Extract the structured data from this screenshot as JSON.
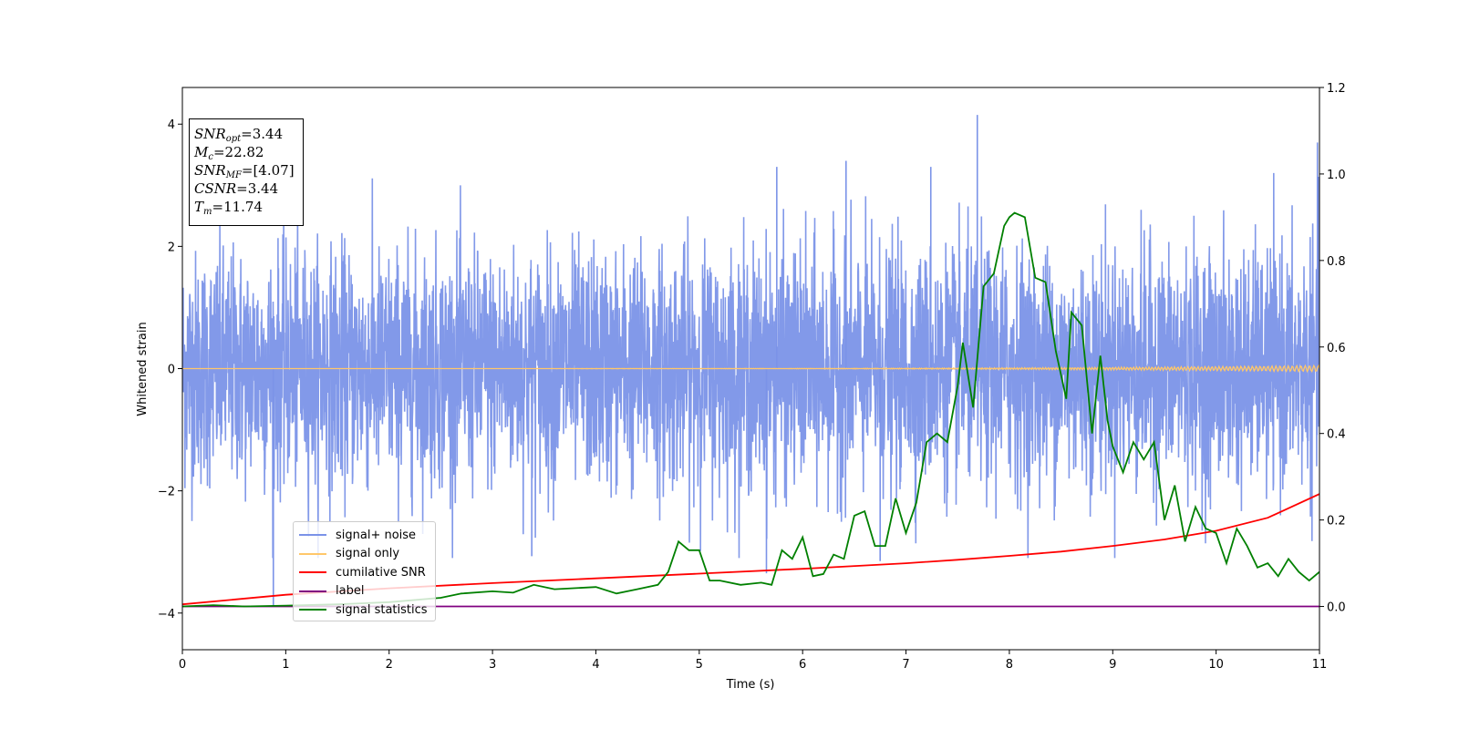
{
  "chart_data": {
    "type": "line",
    "title": "",
    "xlabel": "Time (s)",
    "ylabel": "Whitened strain",
    "xlim": [
      0,
      11
    ],
    "ylim": [
      -4.6,
      4.6
    ],
    "y2lim": [
      -0.1,
      1.2
    ],
    "xticks": [
      "0",
      "1",
      "2",
      "3",
      "4",
      "5",
      "6",
      "7",
      "8",
      "9",
      "10",
      "11"
    ],
    "yticks": [
      "−4",
      "−2",
      "0",
      "2",
      "4"
    ],
    "y2ticks": [
      "0.0",
      "0.2",
      "0.4",
      "0.6",
      "0.8",
      "1.0",
      "1.2"
    ],
    "annotation": {
      "snr_opt": "=3.44",
      "mc": "=22.82",
      "snr_mf": "=[4.07]",
      "csnr": "=3.44",
      "tm": "=11.74"
    },
    "legend": {
      "placement": "lower-left",
      "entries": [
        {
          "label": "signal+ noise",
          "color": "#7b93e8"
        },
        {
          "label": "signal only",
          "color": "#ffc76a"
        },
        {
          "label": "cumilative SNR",
          "color": "#ff0000"
        },
        {
          "label": "label",
          "color": "#800080"
        },
        {
          "label": "signal statistics",
          "color": "#008000"
        }
      ]
    },
    "series": [
      {
        "name": "signal+ noise",
        "axis": "left",
        "color": "#7b93e8",
        "envelope": {
          "upper_typical": 2.3,
          "lower_typical": -2.1,
          "max": 4.15,
          "min": -3.9
        },
        "peaks": [
          [
            7.69,
            4.15
          ],
          [
            10.98,
            3.7
          ],
          [
            5.75,
            3.3
          ],
          [
            7.24,
            3.3
          ],
          [
            6.42,
            3.4
          ],
          [
            0.88,
            -3.9
          ],
          [
            5.65,
            -3.35
          ],
          [
            3.38,
            -3.07
          ],
          [
            6.75,
            -3.15
          ]
        ]
      },
      {
        "name": "signal only",
        "axis": "left",
        "color": "#ffc76a",
        "description_values": {
          "amplitude_start": 0.0,
          "amplitude_end": 0.05
        }
      },
      {
        "name": "cumilative SNR",
        "axis": "right",
        "color": "#ff0000",
        "x": [
          0,
          1,
          2,
          3,
          4,
          5,
          6,
          7,
          7.5,
          8,
          8.5,
          9,
          9.5,
          10,
          10.5,
          11
        ],
        "y": [
          0.005,
          0.027,
          0.042,
          0.054,
          0.065,
          0.076,
          0.087,
          0.1,
          0.108,
          0.117,
          0.127,
          0.14,
          0.155,
          0.175,
          0.205,
          0.26
        ]
      },
      {
        "name": "label",
        "axis": "right",
        "color": "#800080",
        "x": [
          0,
          11
        ],
        "y": [
          0,
          0
        ]
      },
      {
        "name": "signal statistics",
        "axis": "right",
        "color": "#008000",
        "x": [
          0,
          0.3,
          0.6,
          1.0,
          1.5,
          2.0,
          2.5,
          2.7,
          3.0,
          3.2,
          3.4,
          3.6,
          4.0,
          4.2,
          4.4,
          4.6,
          4.7,
          4.8,
          4.9,
          5.0,
          5.1,
          5.2,
          5.4,
          5.6,
          5.7,
          5.8,
          5.9,
          6.0,
          6.1,
          6.2,
          6.3,
          6.4,
          6.5,
          6.6,
          6.7,
          6.8,
          6.9,
          7.0,
          7.1,
          7.2,
          7.3,
          7.4,
          7.5,
          7.55,
          7.65,
          7.75,
          7.85,
          7.95,
          8.0,
          8.05,
          8.15,
          8.25,
          8.35,
          8.45,
          8.55,
          8.6,
          8.7,
          8.8,
          8.88,
          8.95,
          9.0,
          9.1,
          9.2,
          9.3,
          9.4,
          9.5,
          9.6,
          9.7,
          9.8,
          9.9,
          10.0,
          10.1,
          10.2,
          10.3,
          10.4,
          10.5,
          10.6,
          10.7,
          10.8,
          10.9,
          11.0
        ],
        "y": [
          0.0,
          0.003,
          0.0,
          0.002,
          0.005,
          0.01,
          0.02,
          0.03,
          0.035,
          0.032,
          0.05,
          0.04,
          0.045,
          0.03,
          0.04,
          0.05,
          0.08,
          0.15,
          0.13,
          0.13,
          0.06,
          0.06,
          0.05,
          0.055,
          0.05,
          0.13,
          0.11,
          0.16,
          0.07,
          0.075,
          0.12,
          0.11,
          0.21,
          0.22,
          0.14,
          0.14,
          0.25,
          0.17,
          0.24,
          0.38,
          0.4,
          0.38,
          0.51,
          0.61,
          0.46,
          0.74,
          0.77,
          0.88,
          0.9,
          0.91,
          0.9,
          0.76,
          0.75,
          0.59,
          0.48,
          0.68,
          0.65,
          0.4,
          0.58,
          0.43,
          0.37,
          0.31,
          0.38,
          0.34,
          0.38,
          0.2,
          0.28,
          0.15,
          0.23,
          0.18,
          0.17,
          0.1,
          0.18,
          0.14,
          0.09,
          0.1,
          0.07,
          0.11,
          0.08,
          0.06,
          0.08
        ]
      }
    ]
  }
}
